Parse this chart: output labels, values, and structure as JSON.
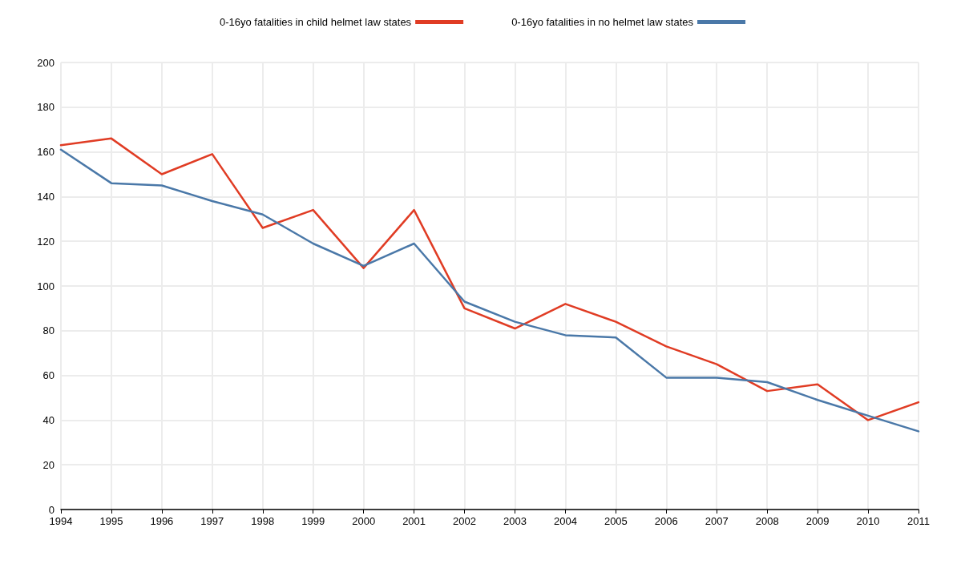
{
  "chart_data": {
    "type": "line",
    "categories": [
      "1994",
      "1995",
      "1996",
      "1997",
      "1998",
      "1999",
      "2000",
      "2001",
      "2002",
      "2003",
      "2004",
      "2005",
      "2006",
      "2007",
      "2008",
      "2009",
      "2010",
      "2011"
    ],
    "series": [
      {
        "name": "0-16yo fatalities in child helmet law states",
        "color": "#e03c24",
        "values": [
          163,
          166,
          150,
          159,
          126,
          134,
          108,
          134,
          90,
          81,
          92,
          84,
          73,
          65,
          53,
          56,
          40,
          48
        ]
      },
      {
        "name": "0-16yo fatalities in no helmet law states",
        "color": "#4a78a8",
        "values": [
          161,
          146,
          145,
          138,
          132,
          119,
          109,
          119,
          93,
          84,
          78,
          77,
          59,
          59,
          57,
          49,
          42,
          35
        ]
      }
    ],
    "ylim": [
      0,
      200
    ],
    "yticks": [
      0,
      20,
      40,
      60,
      80,
      100,
      120,
      140,
      160,
      180,
      200
    ],
    "grid": true,
    "legend": "top",
    "marker": "none",
    "line_style": "solid"
  }
}
